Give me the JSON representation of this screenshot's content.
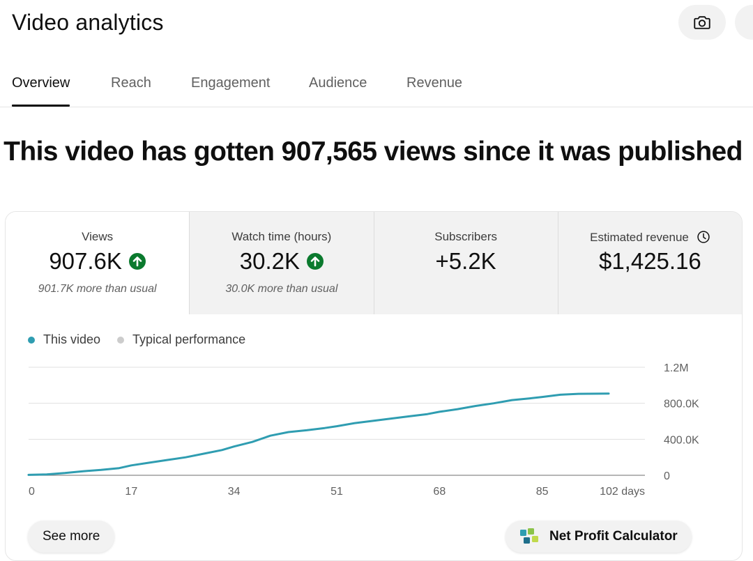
{
  "page": {
    "title": "Video analytics",
    "headline": "This video has gotten 907,565 views since it was published"
  },
  "header_actions": [
    {
      "icon": "camera-icon"
    },
    {
      "icon": "more-icon"
    }
  ],
  "tabs": [
    "Overview",
    "Reach",
    "Engagement",
    "Audience",
    "Revenue"
  ],
  "active_tab": "Overview",
  "metrics": [
    {
      "label": "Views",
      "value": "907.6K",
      "trend": "up",
      "note": "901.7K more than usual"
    },
    {
      "label": "Watch time (hours)",
      "value": "30.2K",
      "trend": "up",
      "note": "30.0K more than usual"
    },
    {
      "label": "Subscribers",
      "value": "+5.2K",
      "trend": "",
      "note": ""
    },
    {
      "label": "Estimated revenue",
      "value": "$1,425.16",
      "trend": "",
      "note": "",
      "icon": "clock-icon"
    }
  ],
  "colors": {
    "series_this_video": "#2f9db1",
    "series_typical": "#cccccc",
    "trend_up": "#0b7a2e"
  },
  "chart_data": {
    "type": "line",
    "legend": [
      "This video",
      "Typical performance"
    ],
    "xlabel": "days",
    "x_ticks": [
      "0",
      "17",
      "34",
      "51",
      "68",
      "85",
      "102 days"
    ],
    "y_ticks": [
      "0",
      "400.0K",
      "800.0K",
      "1.2M"
    ],
    "xlim": [
      0,
      102
    ],
    "ylim": [
      0,
      1200000
    ],
    "series": [
      {
        "name": "This video",
        "x": [
          0,
          3,
          6,
          9,
          12,
          15,
          17,
          20,
          23,
          26,
          29,
          32,
          34,
          37,
          40,
          43,
          46,
          49,
          51,
          54,
          57,
          60,
          63,
          66,
          68,
          71,
          74,
          77,
          80,
          83,
          85,
          88,
          91,
          96
        ],
        "y": [
          5000,
          10000,
          25000,
          45000,
          60000,
          80000,
          110000,
          140000,
          170000,
          200000,
          240000,
          280000,
          320000,
          370000,
          440000,
          480000,
          500000,
          525000,
          545000,
          580000,
          605000,
          630000,
          655000,
          680000,
          705000,
          735000,
          770000,
          800000,
          835000,
          855000,
          870000,
          895000,
          905000,
          907600
        ]
      }
    ]
  },
  "buttons": {
    "see_more": "See more",
    "net_profit": "Net Profit Calculator"
  }
}
